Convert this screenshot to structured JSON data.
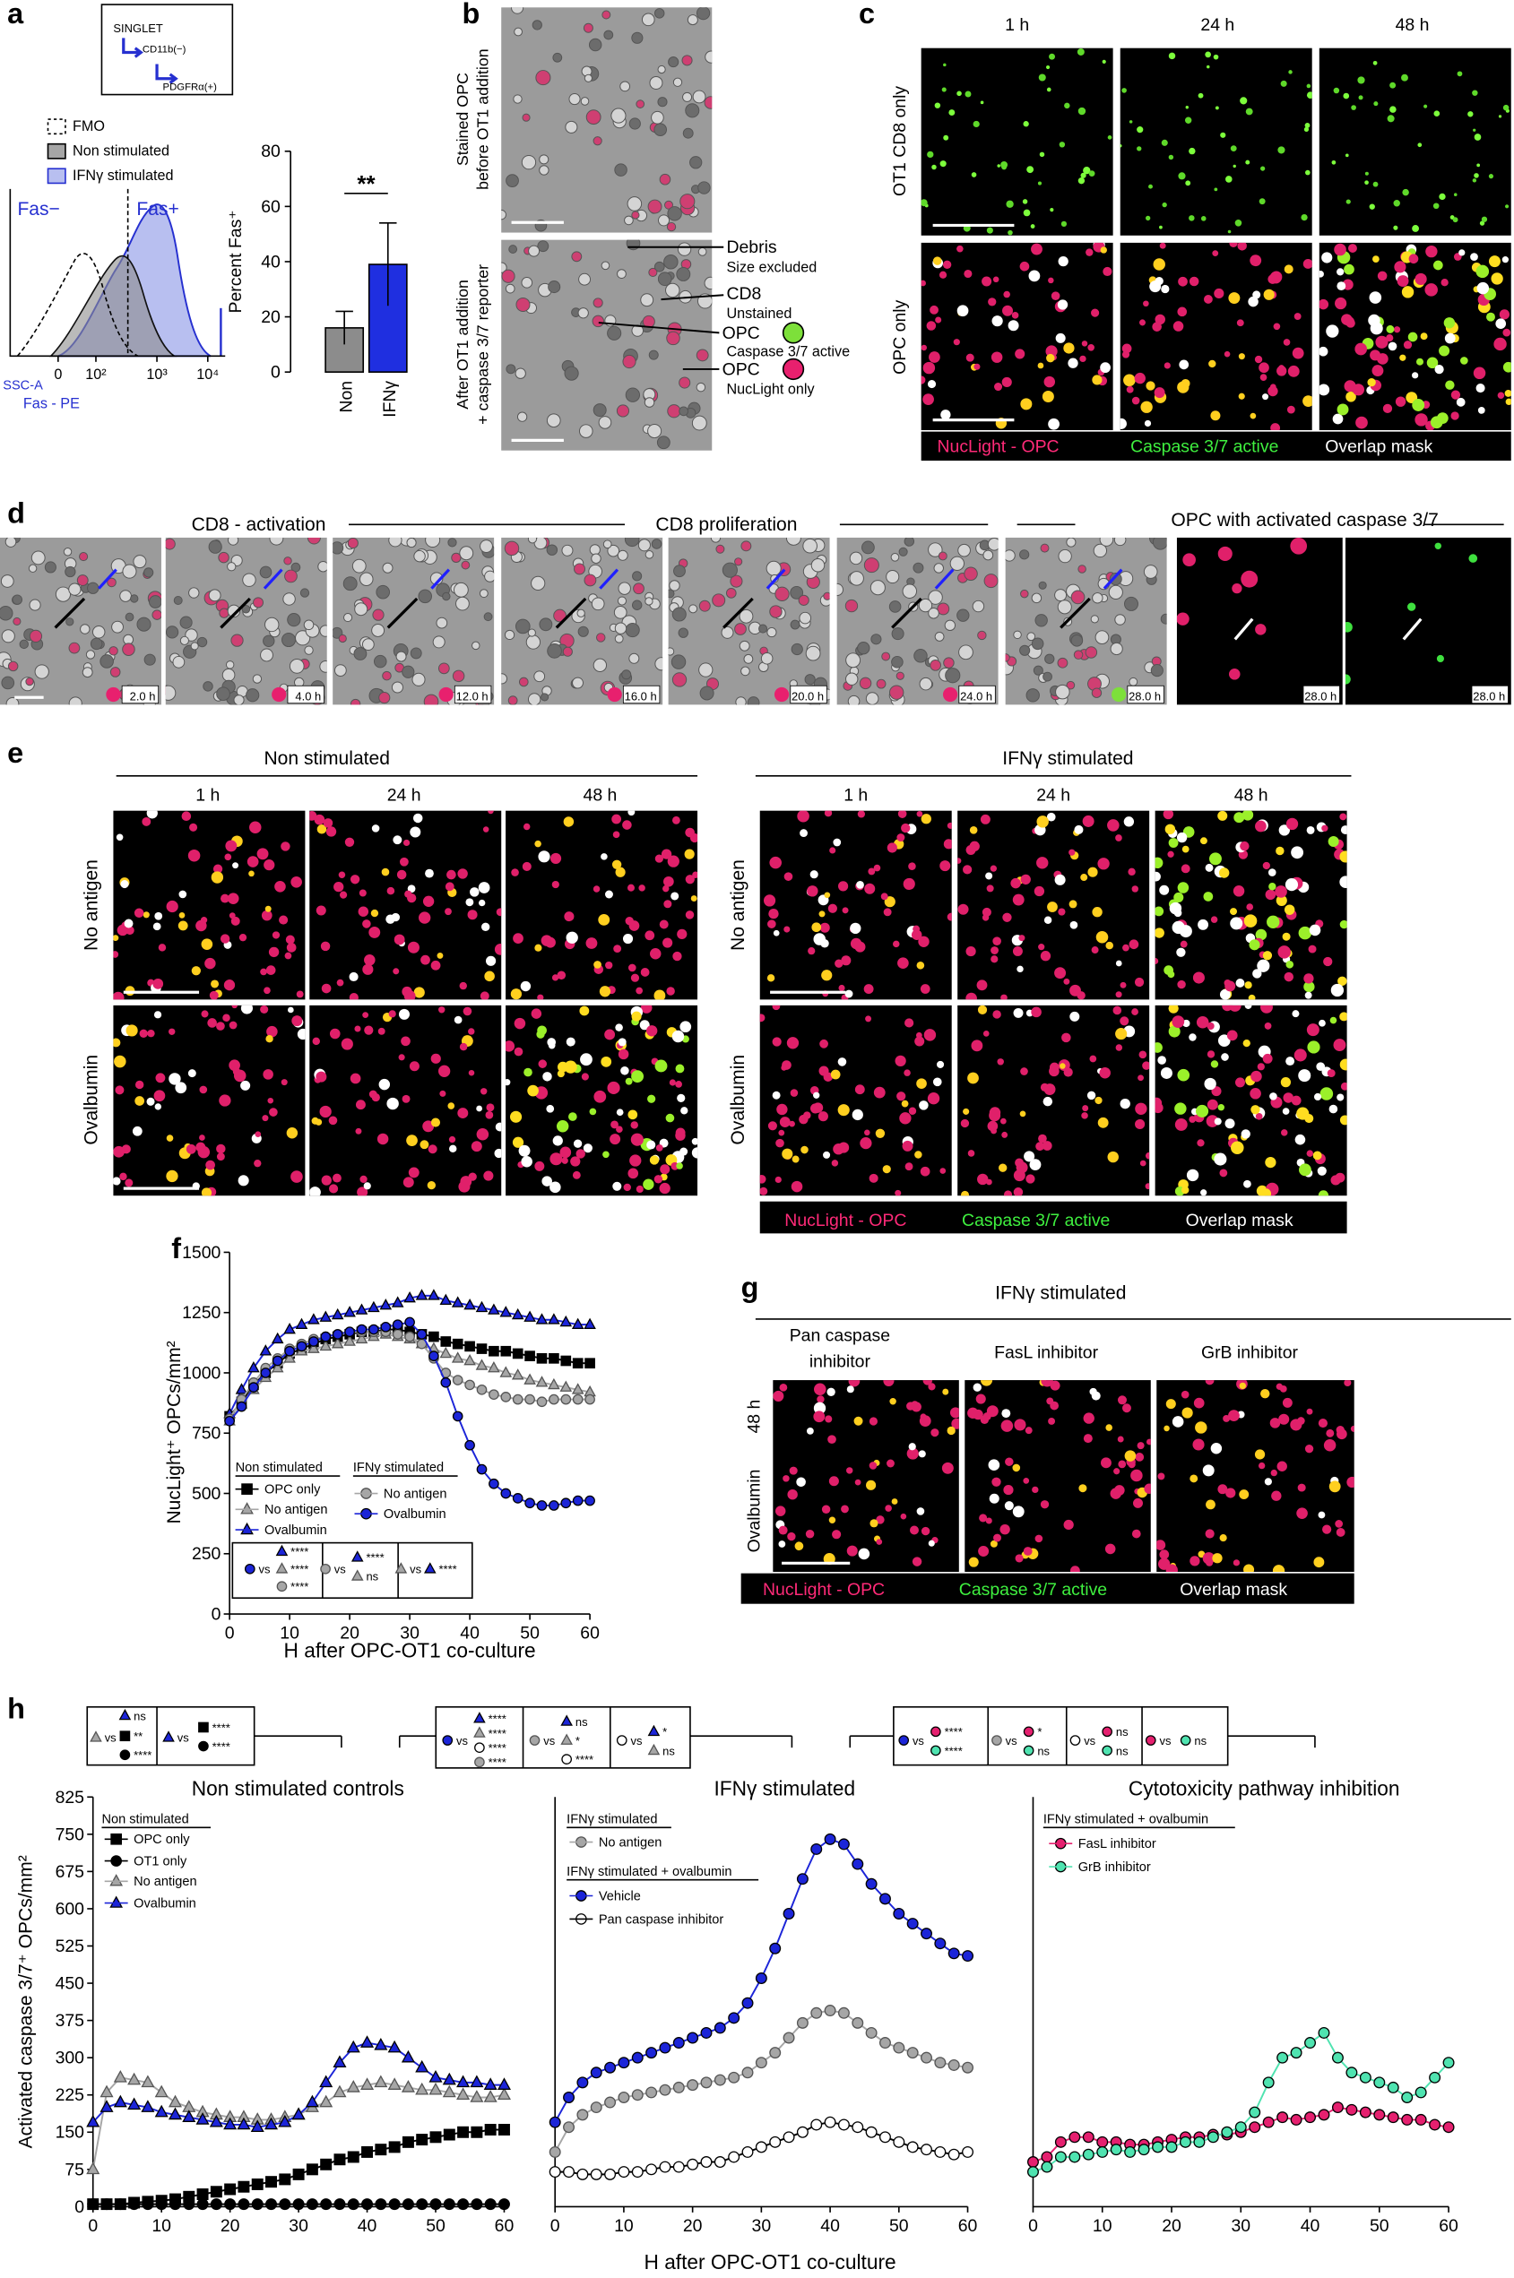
{
  "panel_labels": [
    "a",
    "b",
    "c",
    "d",
    "e",
    "f",
    "g",
    "h"
  ],
  "a": {
    "gating": [
      "SINGLET",
      "CD11b(−)",
      "PDGFRα(+)"
    ],
    "legend": [
      "FMO",
      "Non stimulated",
      "IFNγ stimulated"
    ],
    "gates": [
      "Fas−",
      "Fas+"
    ],
    "xticks": [
      "0",
      "10²",
      "10³",
      "10⁴"
    ],
    "ylabel": "SSC-A",
    "xlabel": "Fas - PE"
  },
  "b": {
    "labels": [
      "Stained OPC",
      "before OT1 addition",
      "After OT1 addition",
      "+ caspase 3/7 reporter"
    ],
    "callouts": [
      "Debris",
      "Size excluded",
      "CD8",
      "Unstained",
      "OPC",
      "Caspase 3/7 active",
      "OPC",
      "NucLight only"
    ]
  },
  "c": {
    "columns": [
      "1 h",
      "24 h",
      "48 h"
    ],
    "rows": [
      "OT1 CD8 only",
      "OPC only"
    ]
  },
  "legend": [
    "NucLight - OPC",
    "Caspase 3/7 active",
    "Overlap mask"
  ],
  "d": {
    "phases": [
      "CD8 - activation",
      "CD8 proliferation",
      "OPC with activated caspase 3/7"
    ],
    "times": [
      "2.0 h",
      "4.0 h",
      "12.0 h",
      "16.0 h",
      "20.0 h",
      "24.0 h",
      "28.0 h",
      "28.0 h",
      "28.0 h"
    ]
  },
  "e": {
    "groups": [
      "Non stimulated",
      "IFNγ stimulated"
    ],
    "columns": [
      "1 h",
      "24 h",
      "48 h"
    ],
    "rows": [
      "No antigen",
      "Ovalbumin"
    ]
  },
  "g": {
    "title": "IFNγ stimulated",
    "columns": [
      "Pan caspase",
      "inhibitor",
      "FasL inhibitor",
      "GrB inhibitor"
    ],
    "time": "48 h",
    "row": "Ovalbumin"
  },
  "chart_data": [
    {
      "type": "bar",
      "categories": [
        "Non",
        "IFNγ"
      ],
      "values": [
        16,
        39
      ],
      "errors": [
        6,
        15
      ],
      "colors": [
        "#8c8c8c",
        "#1f2fe0"
      ],
      "ylabel": "Percent Fas⁺",
      "ylim": [
        0,
        80
      ],
      "yticks": [
        0,
        20,
        40,
        60,
        80
      ],
      "annotation": "**"
    },
    {
      "type": "line",
      "xlabel": "H after OPC-OT1 co-culture",
      "ylabel": "NucLight⁺ OPCs/mm²",
      "x": [
        0,
        2,
        4,
        6,
        8,
        10,
        12,
        14,
        16,
        18,
        20,
        22,
        24,
        26,
        28,
        30,
        32,
        34,
        36,
        38,
        40,
        42,
        44,
        46,
        48,
        50,
        52,
        54,
        56,
        58,
        60
      ],
      "xlim": [
        0,
        60
      ],
      "xticks": [
        0,
        10,
        20,
        30,
        40,
        50,
        60
      ],
      "ylim": [
        0,
        1500
      ],
      "yticks": [
        0,
        250,
        500,
        750,
        1000,
        1250,
        1500
      ],
      "legend_titles": [
        "Non stimulated",
        "IFNγ stimulated"
      ],
      "series": [
        {
          "name": "OPC only",
          "marker": "square",
          "color": "#000000",
          "values": [
            820,
            880,
            950,
            1000,
            1040,
            1080,
            1100,
            1120,
            1140,
            1150,
            1160,
            1170,
            1170,
            1180,
            1180,
            1170,
            1160,
            1150,
            1130,
            1120,
            1110,
            1100,
            1090,
            1090,
            1080,
            1070,
            1060,
            1060,
            1050,
            1040,
            1040
          ]
        },
        {
          "name": "No antigen",
          "marker": "triangle",
          "color": "#a6a6a6",
          "values": [
            800,
            870,
            930,
            980,
            1020,
            1060,
            1090,
            1100,
            1110,
            1120,
            1130,
            1140,
            1150,
            1160,
            1150,
            1140,
            1120,
            1100,
            1080,
            1060,
            1050,
            1030,
            1020,
            1000,
            990,
            970,
            960,
            950,
            940,
            930,
            920
          ]
        },
        {
          "name": "Ovalbumin",
          "marker": "triangle",
          "color": "#1c25d8",
          "values": [
            830,
            930,
            1020,
            1090,
            1140,
            1180,
            1200,
            1220,
            1230,
            1240,
            1250,
            1260,
            1270,
            1280,
            1290,
            1310,
            1320,
            1320,
            1300,
            1290,
            1280,
            1270,
            1260,
            1250,
            1240,
            1230,
            1220,
            1220,
            1210,
            1200,
            1200
          ]
        },
        {
          "name": "No antigen",
          "marker": "circle",
          "color": "#a6a6a6",
          "values": [
            810,
            890,
            960,
            1020,
            1060,
            1100,
            1120,
            1140,
            1150,
            1160,
            1170,
            1170,
            1170,
            1170,
            1160,
            1150,
            1120,
            1060,
            1000,
            970,
            950,
            930,
            910,
            900,
            890,
            890,
            880,
            890,
            890,
            890,
            890
          ]
        },
        {
          "name": "Ovalbumin",
          "marker": "circle",
          "color": "#1c25d8",
          "values": [
            800,
            860,
            940,
            1000,
            1050,
            1090,
            1110,
            1130,
            1150,
            1160,
            1170,
            1180,
            1180,
            1190,
            1200,
            1210,
            1160,
            1070,
            960,
            820,
            700,
            600,
            540,
            500,
            480,
            460,
            450,
            450,
            460,
            470,
            470
          ]
        }
      ],
      "stats": [
        "vs",
        "****",
        "****",
        "****",
        "vs",
        "****",
        "ns",
        "vs",
        "****"
      ]
    },
    {
      "type": "line",
      "title": "Non stimulated controls",
      "ylabel": "Activated caspase 3/7⁺ OPCs/mm²",
      "x": [
        0,
        2,
        4,
        6,
        8,
        10,
        12,
        14,
        16,
        18,
        20,
        22,
        24,
        26,
        28,
        30,
        32,
        34,
        36,
        38,
        40,
        42,
        44,
        46,
        48,
        50,
        52,
        54,
        56,
        58,
        60
      ],
      "xlim": [
        0,
        60
      ],
      "xticks": [
        0,
        10,
        20,
        30,
        40,
        50,
        60
      ],
      "ylim": [
        0,
        825
      ],
      "yticks": [
        0,
        75,
        150,
        225,
        300,
        375,
        450,
        525,
        600,
        675,
        750,
        825
      ],
      "legend_titles": [
        "Non stimulated"
      ],
      "series": [
        {
          "name": "OPC only",
          "marker": "square",
          "color": "#000000",
          "values": [
            5,
            5,
            5,
            8,
            10,
            12,
            15,
            20,
            25,
            30,
            35,
            40,
            45,
            50,
            55,
            65,
            75,
            85,
            95,
            100,
            110,
            115,
            120,
            130,
            135,
            140,
            145,
            150,
            150,
            155,
            155
          ]
        },
        {
          "name": "OT1 only",
          "marker": "circle",
          "color": "#000000",
          "values": [
            5,
            5,
            5,
            5,
            5,
            5,
            5,
            5,
            5,
            5,
            5,
            5,
            5,
            5,
            5,
            5,
            5,
            5,
            5,
            5,
            5,
            5,
            5,
            5,
            5,
            5,
            5,
            5,
            5,
            5,
            5
          ]
        },
        {
          "name": "No antigen",
          "marker": "triangle",
          "color": "#a6a6a6",
          "values": [
            75,
            230,
            260,
            255,
            250,
            230,
            210,
            200,
            190,
            185,
            180,
            180,
            175,
            175,
            180,
            185,
            200,
            210,
            230,
            240,
            245,
            250,
            245,
            240,
            235,
            235,
            230,
            225,
            220,
            220,
            225
          ]
        },
        {
          "name": "Ovalbumin",
          "marker": "triangle",
          "color": "#1c25d8",
          "values": [
            170,
            200,
            210,
            205,
            200,
            190,
            185,
            180,
            175,
            170,
            165,
            165,
            160,
            165,
            170,
            185,
            210,
            250,
            290,
            320,
            330,
            325,
            320,
            300,
            280,
            260,
            255,
            250,
            250,
            245,
            245
          ]
        }
      ],
      "stats": [
        "ns",
        "vs",
        "**",
        "****",
        "vs",
        "****",
        "****"
      ]
    },
    {
      "type": "line",
      "title": "IFNγ stimulated",
      "xlabel": "H after OPC-OT1 co-culture",
      "x": [
        0,
        2,
        4,
        6,
        8,
        10,
        12,
        14,
        16,
        18,
        20,
        22,
        24,
        26,
        28,
        30,
        32,
        34,
        36,
        38,
        40,
        42,
        44,
        46,
        48,
        50,
        52,
        54,
        56,
        58,
        60
      ],
      "xlim": [
        0,
        60
      ],
      "xticks": [
        0,
        10,
        20,
        30,
        40,
        50,
        60
      ],
      "ylim": [
        0,
        825
      ],
      "legend_titles": [
        "IFNγ stimulated",
        "IFNγ stimulated + ovalbumin"
      ],
      "series": [
        {
          "name": "No antigen",
          "marker": "circle",
          "color": "#a6a6a6",
          "values": [
            110,
            160,
            185,
            200,
            210,
            220,
            225,
            230,
            235,
            240,
            245,
            250,
            255,
            260,
            270,
            290,
            310,
            340,
            370,
            390,
            395,
            390,
            370,
            350,
            330,
            320,
            310,
            300,
            290,
            285,
            280
          ]
        },
        {
          "name": "Vehicle",
          "marker": "circle",
          "color": "#1c25d8",
          "values": [
            170,
            220,
            250,
            270,
            280,
            290,
            300,
            310,
            320,
            330,
            340,
            350,
            360,
            380,
            410,
            460,
            520,
            590,
            660,
            720,
            740,
            730,
            690,
            650,
            620,
            590,
            570,
            550,
            530,
            510,
            505
          ]
        },
        {
          "name": "Pan caspase inhibitor",
          "marker": "circle",
          "color": "#ffffff",
          "values": [
            70,
            70,
            65,
            65,
            65,
            70,
            70,
            75,
            80,
            80,
            85,
            90,
            90,
            100,
            110,
            120,
            130,
            140,
            150,
            165,
            170,
            165,
            160,
            150,
            140,
            130,
            120,
            115,
            110,
            105,
            110
          ]
        }
      ],
      "stats": [
        "vs",
        "****",
        "****",
        "****",
        "****",
        "vs",
        "ns",
        "*",
        "****",
        "vs",
        "*",
        "ns"
      ]
    },
    {
      "type": "line",
      "title": "Cytotoxicity pathway inhibition",
      "x": [
        0,
        2,
        4,
        6,
        8,
        10,
        12,
        14,
        16,
        18,
        20,
        22,
        24,
        26,
        28,
        30,
        32,
        34,
        36,
        38,
        40,
        42,
        44,
        46,
        48,
        50,
        52,
        54,
        56,
        58,
        60
      ],
      "xlim": [
        0,
        60
      ],
      "xticks": [
        0,
        10,
        20,
        30,
        40,
        50,
        60
      ],
      "ylim": [
        0,
        825
      ],
      "legend_titles": [
        "IFNγ stimulated + ovalbumin"
      ],
      "series": [
        {
          "name": "FasL inhibitor",
          "marker": "circle",
          "color": "#e5206f",
          "values": [
            90,
            100,
            130,
            140,
            140,
            130,
            130,
            125,
            125,
            130,
            135,
            140,
            140,
            145,
            145,
            150,
            160,
            170,
            180,
            175,
            180,
            185,
            200,
            195,
            190,
            185,
            180,
            175,
            175,
            165,
            160
          ]
        },
        {
          "name": "GrB inhibitor",
          "marker": "circle",
          "color": "#4fe3b0",
          "values": [
            70,
            80,
            100,
            100,
            105,
            110,
            115,
            110,
            115,
            120,
            120,
            130,
            130,
            140,
            150,
            160,
            190,
            250,
            300,
            310,
            330,
            350,
            300,
            270,
            260,
            250,
            240,
            220,
            230,
            260,
            290
          ]
        }
      ],
      "stats": [
        "vs",
        "****",
        "****",
        "vs",
        "*",
        "ns",
        "vs",
        "ns",
        "ns",
        "vs",
        "ns"
      ]
    }
  ]
}
